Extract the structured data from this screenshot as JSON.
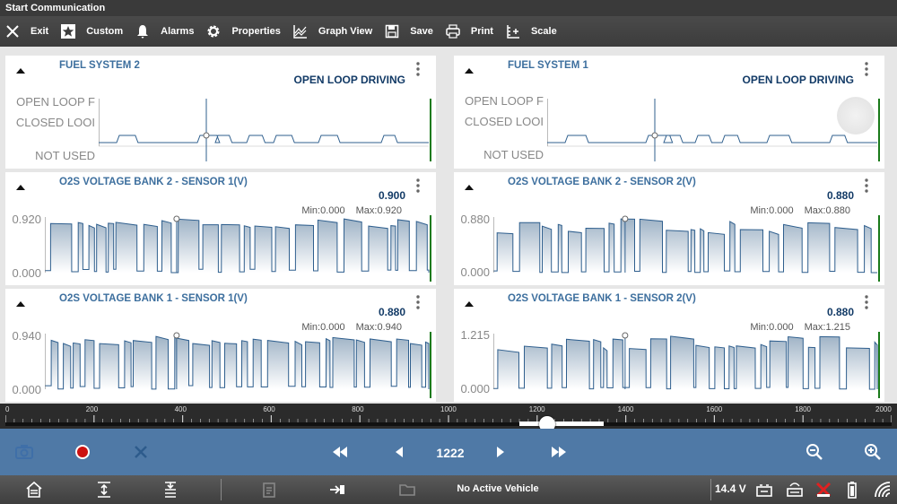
{
  "title_bar": {
    "text": "Start Communication"
  },
  "toolbar": {
    "exit": "Exit",
    "custom": "Custom",
    "alarms": "Alarms",
    "properties": "Properties",
    "graph_view": "Graph View",
    "save": "Save",
    "print": "Print",
    "scale": "Scale"
  },
  "panels": {
    "fuel2": {
      "title": "FUEL SYSTEM 2",
      "value": "OPEN LOOP DRIVING",
      "labels": [
        "OPEN LOOP F",
        "CLOSED LOOI",
        "NOT USED"
      ]
    },
    "fuel1": {
      "title": "FUEL SYSTEM 1",
      "value": "OPEN LOOP DRIVING",
      "labels": [
        "OPEN LOOP F",
        "CLOSED LOOI",
        "NOT USED"
      ]
    },
    "o2b2s1": {
      "title": "O2S VOLTAGE BANK 2 - SENSOR 1(V)",
      "value": "0.900",
      "min": "Min:0.000",
      "max": "Max:0.920",
      "ymax": "0.920",
      "ymin": "0.000"
    },
    "o2b2s2": {
      "title": "O2S VOLTAGE BANK 2 - SENSOR 2(V)",
      "value": "0.880",
      "min": "Min:0.000",
      "max": "Max:0.880",
      "ymax": "0.880",
      "ymin": "0.000"
    },
    "o2b1s1": {
      "title": "O2S VOLTAGE BANK 1 - SENSOR 1(V)",
      "value": "0.880",
      "min": "Min:0.000",
      "max": "Max:0.940",
      "ymax": "0.940",
      "ymin": "0.000"
    },
    "o2b1s2": {
      "title": "O2S VOLTAGE BANK 1 - SENSOR 2(V)",
      "value": "0.880",
      "min": "Min:0.000",
      "max": "Max:1.215",
      "ymax": "1.215",
      "ymin": "0.000"
    }
  },
  "timeline": {
    "ticks": [
      "0",
      "200",
      "400",
      "600",
      "800",
      "1000",
      "1200",
      "1400",
      "1600",
      "1800",
      "2000"
    ],
    "max": 2000,
    "position": 1222,
    "range_start": 1160,
    "range_end": 1350
  },
  "playbar": {
    "frame": "1222",
    "record_color": "#cc1111"
  },
  "status": {
    "vehicle": "No Active Vehicle",
    "voltage": "14.4 V"
  },
  "colors": {
    "accent": "#4f79a6",
    "trace": "#2f5f8e",
    "title": "#3d6f9e",
    "marker": "#1a7a1a"
  },
  "icons": {
    "toolbar": [
      "close-icon",
      "star-icon",
      "bell-icon",
      "gear-icon",
      "graph-icon",
      "floppy-icon",
      "printer-icon",
      "scale-icon"
    ],
    "playbar": [
      "camera-icon",
      "record-icon",
      "cancel-icon",
      "rewind-icon",
      "step-back-icon",
      "step-forward-icon",
      "fast-forward-icon",
      "zoom-out-icon",
      "zoom-in-icon"
    ],
    "status": [
      "home-icon",
      "expand-icon",
      "collapse-icon",
      "clipboard-icon",
      "connect-icon",
      "folder-icon",
      "battery-icon",
      "vci-icon",
      "no-connection-icon",
      "battery-level-icon",
      "wifi-icon"
    ]
  }
}
